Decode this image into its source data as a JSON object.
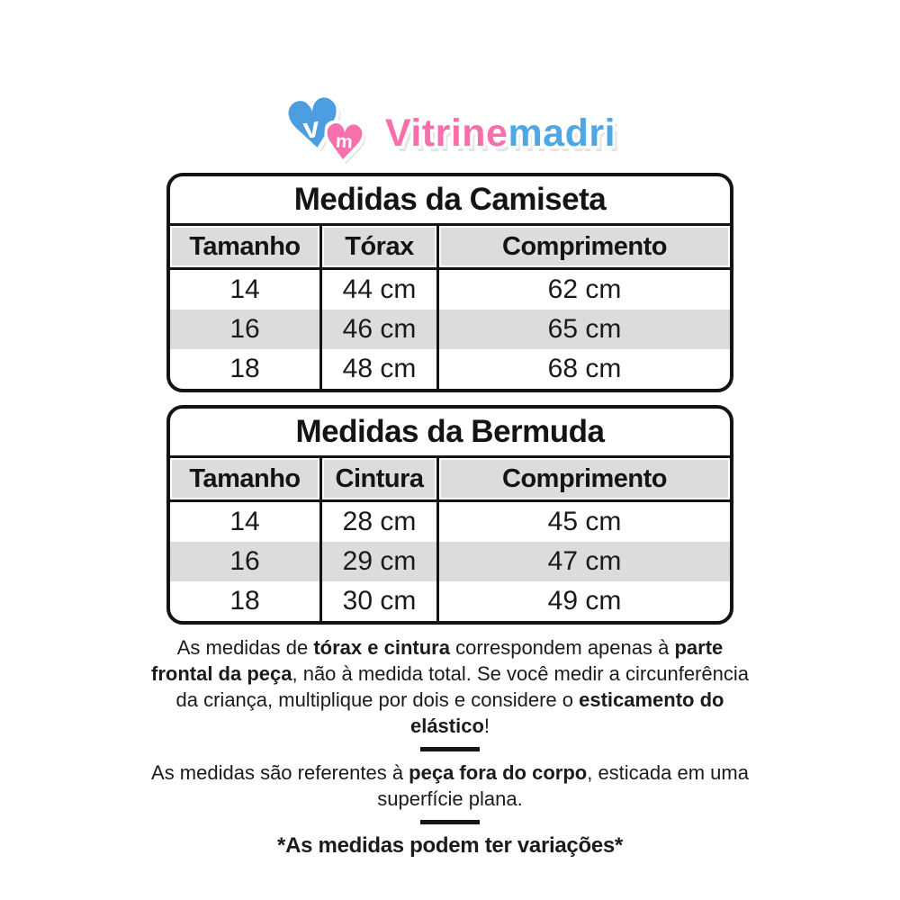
{
  "logo": {
    "mark_letters": {
      "v": "v",
      "m": "m"
    },
    "name_part1": "Vitrine",
    "name_part2": "madri",
    "colors": {
      "pink": "#f770ab",
      "blue": "#4fa8e6"
    }
  },
  "tables": [
    {
      "title": "Medidas da Camiseta",
      "headers": [
        "Tamanho",
        "Tórax",
        "Comprimento"
      ],
      "rows": [
        [
          "14",
          "44 cm",
          "62 cm"
        ],
        [
          "16",
          "46 cm",
          "65 cm"
        ],
        [
          "18",
          "48 cm",
          "68 cm"
        ]
      ]
    },
    {
      "title": "Medidas da Bermuda",
      "headers": [
        "Tamanho",
        "Cintura",
        "Comprimento"
      ],
      "rows": [
        [
          "14",
          "28 cm",
          "45 cm"
        ],
        [
          "16",
          "29 cm",
          "47 cm"
        ],
        [
          "18",
          "30 cm",
          "49 cm"
        ]
      ]
    }
  ],
  "notes": {
    "p1": {
      "s0": "As medidas de ",
      "s1": "tórax e cintura",
      "s2": " correspondem apenas à ",
      "s3": "parte frontal da peça",
      "s4": ", não à medida total. Se você medir a circunferência da criança, multiplique por dois e considere o ",
      "s5": "esticamento do elástico",
      "s6": "!"
    },
    "p2": {
      "s0": "As medidas são referentes à ",
      "s1": "peça fora do corpo",
      "s2": ", esticada em uma superfície plana."
    },
    "final": "*As medidas podem ter variações*"
  },
  "style_colors": {
    "stripe_gray": "#dcdcdc",
    "border_black": "#141414",
    "background": "#ffffff"
  }
}
